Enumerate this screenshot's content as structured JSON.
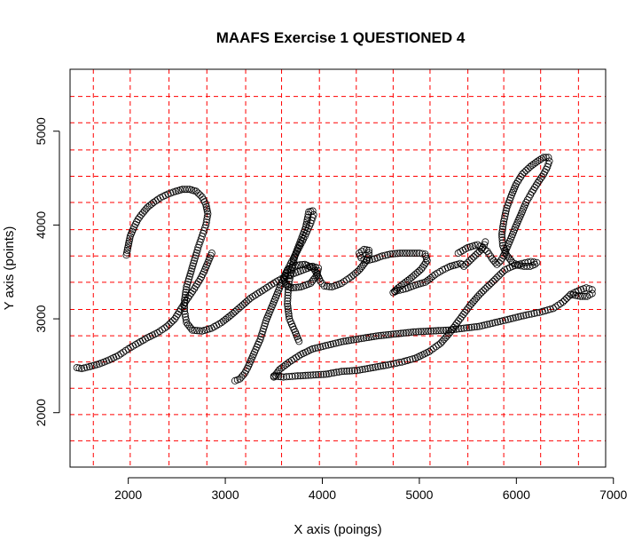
{
  "chart_data": {
    "type": "scatter",
    "title": "MAAFS Exercise 1 QUESTIONED 4",
    "xlabel": "X axis (poings)",
    "ylabel": "Y axis (points)",
    "xlim": [
      1400,
      6920
    ],
    "ylim": [
      1420,
      5660
    ],
    "x_ticks": [
      2000,
      3000,
      4000,
      5000,
      6000,
      7000
    ],
    "y_ticks": [
      2000,
      3000,
      4000,
      5000
    ],
    "grid": {
      "visible": true,
      "color": "#ff0000",
      "style": "dashed",
      "x_lines": [
        1640,
        2020,
        2420,
        2810,
        3210,
        3580,
        3970,
        4350,
        4730,
        5110,
        5500,
        5870,
        6250,
        6640
      ],
      "y_lines": [
        1700,
        1980,
        2260,
        2540,
        2820,
        3100,
        3390,
        3670,
        3950,
        4240,
        4520,
        4800,
        5090,
        5370
      ]
    },
    "marker": {
      "shape": "open-circle",
      "color": "#000000"
    },
    "legend": "none",
    "strokes": [
      [
        [
          1470,
          2480
        ],
        [
          1520,
          2470
        ],
        [
          1600,
          2490
        ],
        [
          1700,
          2520
        ],
        [
          1800,
          2560
        ],
        [
          1900,
          2610
        ],
        [
          2000,
          2680
        ],
        [
          2100,
          2740
        ],
        [
          2200,
          2800
        ],
        [
          2300,
          2850
        ],
        [
          2400,
          2920
        ],
        [
          2480,
          3000
        ],
        [
          2540,
          3100
        ],
        [
          2600,
          3200
        ],
        [
          2680,
          3320
        ],
        [
          2740,
          3420
        ],
        [
          2780,
          3500
        ],
        [
          2820,
          3600
        ],
        [
          2860,
          3700
        ]
      ],
      [
        [
          1980,
          3680
        ],
        [
          2000,
          3780
        ],
        [
          2020,
          3880
        ],
        [
          2060,
          3980
        ],
        [
          2100,
          4060
        ],
        [
          2150,
          4130
        ],
        [
          2200,
          4190
        ],
        [
          2260,
          4240
        ],
        [
          2330,
          4290
        ],
        [
          2410,
          4330
        ],
        [
          2490,
          4360
        ],
        [
          2560,
          4380
        ],
        [
          2630,
          4380
        ],
        [
          2700,
          4360
        ],
        [
          2760,
          4300
        ],
        [
          2800,
          4220
        ],
        [
          2820,
          4120
        ],
        [
          2800,
          4000
        ],
        [
          2760,
          3880
        ],
        [
          2720,
          3760
        ],
        [
          2680,
          3620
        ],
        [
          2640,
          3480
        ],
        [
          2600,
          3340
        ],
        [
          2580,
          3200
        ],
        [
          2580,
          3080
        ],
        [
          2600,
          2960
        ],
        [
          2660,
          2880
        ],
        [
          2760,
          2870
        ],
        [
          2860,
          2900
        ],
        [
          2960,
          2960
        ],
        [
          3060,
          3040
        ],
        [
          3160,
          3130
        ],
        [
          3260,
          3220
        ],
        [
          3380,
          3300
        ],
        [
          3500,
          3380
        ],
        [
          3600,
          3440
        ],
        [
          3700,
          3480
        ],
        [
          3800,
          3520
        ],
        [
          3900,
          3560
        ],
        [
          3960,
          3540
        ],
        [
          3940,
          3460
        ],
        [
          3880,
          3380
        ],
        [
          3780,
          3340
        ],
        [
          3680,
          3330
        ],
        [
          3620,
          3370
        ],
        [
          3600,
          3440
        ],
        [
          3640,
          3520
        ],
        [
          3720,
          3570
        ],
        [
          3820,
          3580
        ],
        [
          3910,
          3540
        ],
        [
          3950,
          3470
        ],
        [
          3980,
          3400
        ],
        [
          4020,
          3350
        ],
        [
          4100,
          3340
        ],
        [
          4200,
          3380
        ],
        [
          4300,
          3450
        ],
        [
          4380,
          3520
        ],
        [
          4440,
          3600
        ],
        [
          4480,
          3680
        ],
        [
          4480,
          3730
        ],
        [
          4430,
          3740
        ],
        [
          4380,
          3700
        ],
        [
          4400,
          3650
        ],
        [
          4460,
          3620
        ],
        [
          4540,
          3640
        ],
        [
          4620,
          3670
        ],
        [
          4700,
          3690
        ],
        [
          4800,
          3700
        ],
        [
          4900,
          3700
        ],
        [
          5000,
          3700
        ],
        [
          5060,
          3690
        ],
        [
          5080,
          3620
        ],
        [
          5020,
          3530
        ],
        [
          4920,
          3440
        ],
        [
          4820,
          3360
        ],
        [
          4760,
          3310
        ],
        [
          4730,
          3280
        ],
        [
          4770,
          3300
        ],
        [
          4860,
          3320
        ],
        [
          4960,
          3360
        ],
        [
          5060,
          3390
        ],
        [
          5100,
          3420
        ],
        [
          5160,
          3470
        ],
        [
          5240,
          3520
        ],
        [
          5320,
          3560
        ],
        [
          5390,
          3580
        ],
        [
          5420,
          3590
        ],
        [
          5440,
          3580
        ],
        [
          5460,
          3560
        ],
        [
          5480,
          3580
        ],
        [
          5520,
          3620
        ],
        [
          5560,
          3660
        ],
        [
          5600,
          3700
        ],
        [
          5640,
          3740
        ],
        [
          5670,
          3790
        ],
        [
          5680,
          3820
        ]
      ],
      [
        [
          5400,
          3700
        ],
        [
          5500,
          3760
        ],
        [
          5600,
          3790
        ],
        [
          5700,
          3720
        ],
        [
          5750,
          3640
        ],
        [
          5800,
          3580
        ],
        [
          5840,
          3620
        ],
        [
          5880,
          3700
        ],
        [
          5920,
          3800
        ],
        [
          5960,
          3900
        ],
        [
          6000,
          4000
        ],
        [
          6050,
          4120
        ],
        [
          6100,
          4240
        ],
        [
          6160,
          4350
        ],
        [
          6220,
          4450
        ],
        [
          6280,
          4540
        ],
        [
          6320,
          4620
        ],
        [
          6340,
          4680
        ],
        [
          6330,
          4720
        ],
        [
          6280,
          4720
        ],
        [
          6220,
          4680
        ],
        [
          6140,
          4620
        ],
        [
          6060,
          4540
        ],
        [
          6000,
          4440
        ],
        [
          5950,
          4320
        ],
        [
          5900,
          4180
        ],
        [
          5870,
          4040
        ],
        [
          5850,
          3900
        ],
        [
          5860,
          3780
        ],
        [
          5900,
          3680
        ],
        [
          5960,
          3600
        ],
        [
          6020,
          3570
        ],
        [
          6080,
          3560
        ],
        [
          6140,
          3560
        ],
        [
          6190,
          3580
        ],
        [
          6210,
          3600
        ],
        [
          6150,
          3610
        ],
        [
          6060,
          3590
        ],
        [
          5960,
          3560
        ],
        [
          5880,
          3520
        ],
        [
          5800,
          3440
        ],
        [
          5720,
          3360
        ],
        [
          5620,
          3260
        ],
        [
          5520,
          3140
        ],
        [
          5420,
          3000
        ],
        [
          5320,
          2860
        ],
        [
          5220,
          2740
        ],
        [
          5100,
          2650
        ],
        [
          4960,
          2580
        ],
        [
          4820,
          2540
        ],
        [
          4680,
          2510
        ],
        [
          4520,
          2480
        ],
        [
          4360,
          2450
        ],
        [
          4200,
          2440
        ],
        [
          4040,
          2410
        ],
        [
          3880,
          2400
        ],
        [
          3720,
          2390
        ],
        [
          3600,
          2380
        ],
        [
          3500,
          2390
        ]
      ],
      [
        [
          3500,
          2380
        ],
        [
          3560,
          2460
        ],
        [
          3660,
          2540
        ],
        [
          3780,
          2620
        ],
        [
          3900,
          2680
        ],
        [
          4060,
          2720
        ],
        [
          4220,
          2760
        ],
        [
          4400,
          2790
        ],
        [
          4580,
          2820
        ],
        [
          4760,
          2840
        ],
        [
          4940,
          2860
        ],
        [
          5120,
          2870
        ],
        [
          5300,
          2880
        ],
        [
          5460,
          2900
        ],
        [
          5620,
          2920
        ],
        [
          5780,
          2960
        ],
        [
          5940,
          3000
        ],
        [
          6100,
          3040
        ],
        [
          6240,
          3070
        ],
        [
          6380,
          3110
        ],
        [
          6480,
          3180
        ],
        [
          6560,
          3260
        ],
        [
          6640,
          3300
        ],
        [
          6720,
          3330
        ],
        [
          6780,
          3310
        ],
        [
          6780,
          3270
        ],
        [
          6730,
          3240
        ],
        [
          6660,
          3240
        ],
        [
          6560,
          3260
        ]
      ],
      [
        [
          3100,
          2340
        ],
        [
          3150,
          2360
        ],
        [
          3200,
          2420
        ],
        [
          3240,
          2500
        ],
        [
          3290,
          2620
        ],
        [
          3360,
          2780
        ],
        [
          3420,
          2980
        ],
        [
          3500,
          3180
        ],
        [
          3580,
          3380
        ],
        [
          3660,
          3560
        ],
        [
          3740,
          3720
        ],
        [
          3820,
          3880
        ],
        [
          3880,
          4020
        ],
        [
          3910,
          4110
        ],
        [
          3900,
          4150
        ],
        [
          3860,
          4140
        ],
        [
          3850,
          4080
        ],
        [
          3830,
          3980
        ],
        [
          3780,
          3840
        ],
        [
          3720,
          3680
        ],
        [
          3680,
          3520
        ],
        [
          3650,
          3340
        ],
        [
          3640,
          3160
        ],
        [
          3660,
          3000
        ],
        [
          3720,
          2860
        ],
        [
          3760,
          2760
        ]
      ]
    ]
  }
}
